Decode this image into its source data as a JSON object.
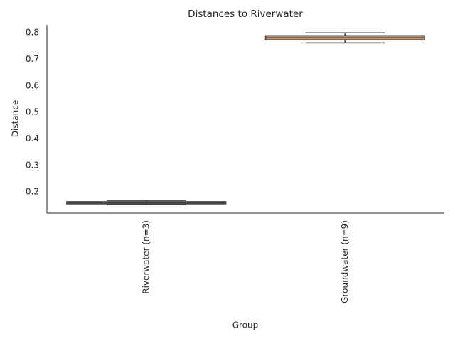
{
  "chart_data": {
    "type": "box",
    "title": "Distances to Riverwater",
    "x_label": "Group",
    "y_label": "Distance",
    "categories": [
      "Riverwater (n=3)",
      "Groundwater (n=9)"
    ],
    "stats": [
      {
        "whislo": 0.152,
        "q1": 0.155,
        "med": 0.16,
        "q3": 0.163,
        "whishi": 0.168
      },
      {
        "whislo": 0.762,
        "q1": 0.773,
        "med": 0.781,
        "q3": 0.789,
        "whishi": 0.8
      }
    ],
    "colors": [
      "#5975a4",
      "#cc8963"
    ],
    "ylim": [
      0.12,
      0.83
    ],
    "yticks": [
      0.2,
      0.3,
      0.4,
      0.5,
      0.6,
      0.7,
      0.8
    ],
    "grid": false
  }
}
